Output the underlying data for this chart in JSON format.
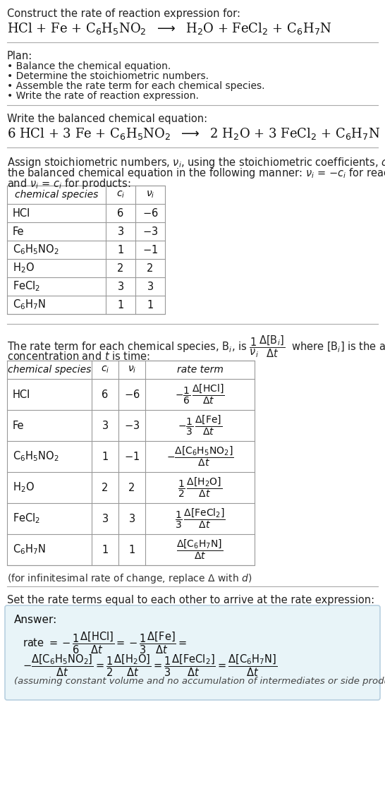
{
  "bg_color": "#ffffff",
  "text_color": "#000000",
  "title_line1": "Construct the rate of reaction expression for:",
  "plan_items": [
    "• Balance the chemical equation.",
    "• Determine the stoichiometric numbers.",
    "• Assemble the rate term for each chemical species.",
    "• Write the rate of reaction expression."
  ],
  "table1_ci": [
    "6",
    "3",
    "1",
    "2",
    "3",
    "1"
  ],
  "table1_vi": [
    "-6",
    "-3",
    "-1",
    "2",
    "3",
    "1"
  ],
  "table2_ci": [
    "6",
    "3",
    "1",
    "2",
    "3",
    "1"
  ],
  "table2_vi": [
    "-6",
    "-3",
    "-1",
    "2",
    "3",
    "1"
  ],
  "answer_bg": "#e8f4f8",
  "answer_border": "#b8d0e0",
  "assuming_note": "(assuming constant volume and no accumulation of intermediates or side products)"
}
